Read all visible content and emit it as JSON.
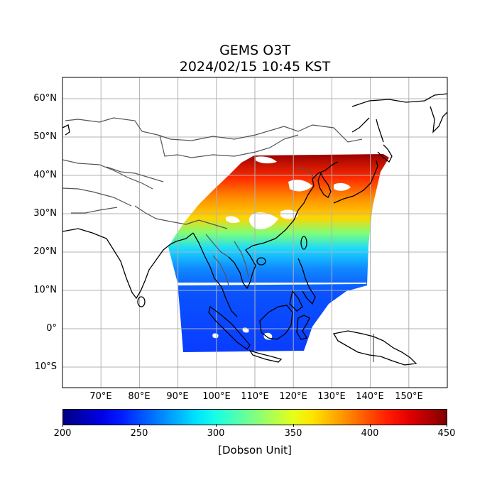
{
  "figure": {
    "title_line1": "GEMS O3T",
    "title_line2": "2024/02/15 10:45 KST"
  },
  "map": {
    "lon_range": [
      60,
      160
    ],
    "lat_range": [
      -15,
      66
    ],
    "lat_ticks": [
      {
        "value": 60,
        "label": "60°N"
      },
      {
        "value": 50,
        "label": "50°N"
      },
      {
        "value": 40,
        "label": "40°N"
      },
      {
        "value": 30,
        "label": "30°N"
      },
      {
        "value": 20,
        "label": "20°N"
      },
      {
        "value": 10,
        "label": "10°N"
      },
      {
        "value": 0,
        "label": "0°"
      },
      {
        "value": -10,
        "label": "10°S"
      }
    ],
    "lon_ticks": [
      {
        "value": 70,
        "label": "70°E"
      },
      {
        "value": 80,
        "label": "80°E"
      },
      {
        "value": 90,
        "label": "90°E"
      },
      {
        "value": 100,
        "label": "100°E"
      },
      {
        "value": 110,
        "label": "110°E"
      },
      {
        "value": 120,
        "label": "120°E"
      },
      {
        "value": 130,
        "label": "130°E"
      },
      {
        "value": 140,
        "label": "140°E"
      },
      {
        "value": 150,
        "label": "150°E"
      }
    ],
    "grid": true,
    "coastline_color": "#000000",
    "border_color": "#555555"
  },
  "colorbar": {
    "colormap": "jet",
    "min": 200,
    "max": 450,
    "ticks": [
      {
        "value": 200,
        "label": "200"
      },
      {
        "value": 250,
        "label": "250"
      },
      {
        "value": 300,
        "label": "300"
      },
      {
        "value": 350,
        "label": "350"
      },
      {
        "value": 400,
        "label": "400"
      },
      {
        "value": 450,
        "label": "450"
      }
    ],
    "unit_label": "[Dobson Unit]"
  }
}
